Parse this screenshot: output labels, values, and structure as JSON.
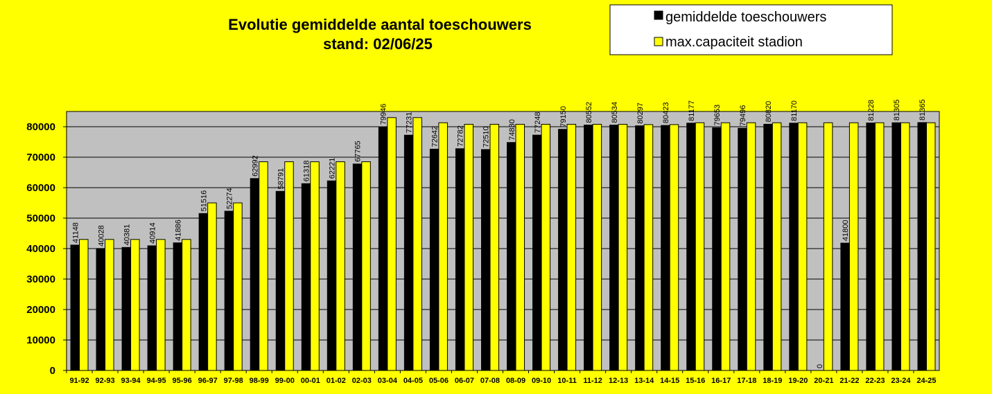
{
  "chart_data": {
    "type": "bar",
    "title": "Evolutie gemiddelde aantal toeschouwers",
    "subtitle": "stand: 02/06/25",
    "categories": [
      "91-92",
      "92-93",
      "93-94",
      "94-95",
      "95-96",
      "96-97",
      "97-98",
      "98-99",
      "99-00",
      "00-01",
      "01-02",
      "02-03",
      "03-04",
      "04-05",
      "05-06",
      "06-07",
      "07-08",
      "08-09",
      "09-10",
      "10-11",
      "11-12",
      "12-13",
      "13-14",
      "14-15",
      "15-16",
      "16-17",
      "17-18",
      "18-19",
      "19-20",
      "20-21",
      "21-22",
      "22-23",
      "23-24",
      "24-25"
    ],
    "series": [
      {
        "name": "gemiddelde toeschouwers",
        "color": "#000000",
        "values": [
          41148,
          40028,
          40381,
          40914,
          41886,
          51516,
          52274,
          62992,
          58791,
          61318,
          62221,
          67765,
          79946,
          77231,
          72642,
          72782,
          72510,
          74830,
          77248,
          79150,
          80552,
          80534,
          80297,
          80423,
          81177,
          79653,
          79496,
          80820,
          81170,
          0,
          41800,
          81228,
          81305,
          81365
        ],
        "labels": [
          "41148",
          "40028",
          "40381",
          "40914",
          "41886",
          "51516",
          "52274",
          "62992",
          "58791",
          "61318",
          "62221",
          "67765",
          "79946",
          "77231",
          "72642",
          "72782",
          "72510",
          "74830",
          "77248",
          "79150",
          "80552",
          "80534",
          "80297",
          "80423",
          "81177",
          "79653",
          "79496",
          "80820",
          "81170",
          "0",
          "41800",
          "81228",
          "81305",
          "81365"
        ]
      },
      {
        "name": "max.capaciteit stadion",
        "color": "#FFFF00",
        "values": [
          43000,
          43000,
          43000,
          43000,
          43000,
          55000,
          55000,
          68500,
          68500,
          68500,
          68500,
          68500,
          83000,
          83000,
          81300,
          80800,
          80800,
          80800,
          80800,
          80800,
          80800,
          80800,
          80700,
          80700,
          81300,
          81300,
          81300,
          81300,
          81300,
          81300,
          81300,
          81300,
          81300,
          81300
        ]
      }
    ],
    "yticks": [
      "0",
      "10000",
      "20000",
      "30000",
      "40000",
      "50000",
      "60000",
      "70000",
      "80000"
    ],
    "ylim": [
      0,
      85000
    ],
    "grid": true,
    "legend_position": "top-right",
    "plot_background": "#C0C0C0",
    "page_background": "#FFFF00"
  }
}
